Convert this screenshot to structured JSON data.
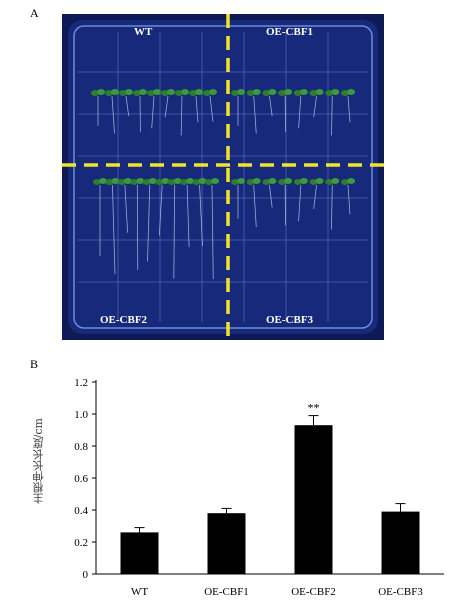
{
  "figure": {
    "panel_a_label": "A",
    "panel_b_label": "B"
  },
  "plate": {
    "quadrant_labels": {
      "top_left": "WT",
      "top_right": "OE-CBF1",
      "bottom_left": "OE-CBF2",
      "bottom_right": "OE-CBF3"
    },
    "colors": {
      "plate_bg": "#17297a",
      "grid": "#5f7fc9",
      "divider": "#f2e42a",
      "seedling": "#2e7d2e"
    }
  },
  "chart_data": {
    "type": "bar",
    "categories": [
      "WT",
      "OE-CBF1",
      "OE-CBF2",
      "OE-CBF3"
    ],
    "values": [
      0.26,
      0.38,
      0.93,
      0.39
    ],
    "errors": [
      0.03,
      0.03,
      0.06,
      0.05
    ],
    "annotations": [
      "",
      "",
      "**",
      ""
    ],
    "ylabel": "主根伸长长度/cm",
    "xlabel": "",
    "ylim": [
      0,
      1.2
    ],
    "yticks": [
      "0",
      "0.2",
      "0.4",
      "0.6",
      "0.8",
      "1.0",
      "1.2"
    ],
    "bar_color": "#000000"
  }
}
